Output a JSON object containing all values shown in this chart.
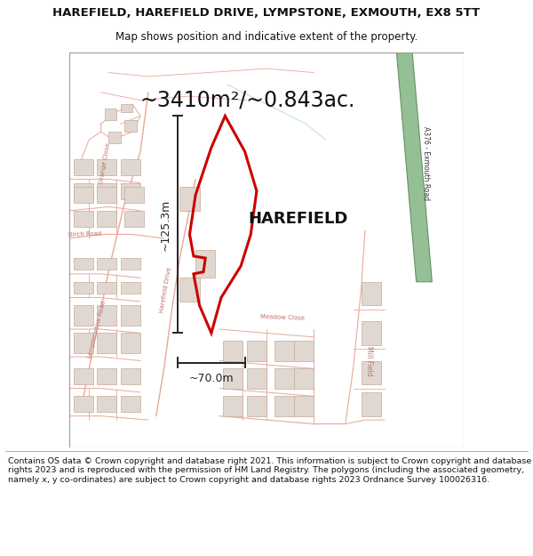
{
  "title": "HAREFIELD, HAREFIELD DRIVE, LYMPSTONE, EXMOUTH, EX8 5TT",
  "subtitle": "Map shows position and indicative extent of the property.",
  "footer": "Contains OS data © Crown copyright and database right 2021. This information is subject to Crown copyright and database rights 2023 and is reproduced with the permission of HM Land Registry. The polygons (including the associated geometry, namely x, y co-ordinates) are subject to Crown copyright and database rights 2023 Ordnance Survey 100026316.",
  "area_label": "~3410m²/~0.843ac.",
  "property_label": "HAREFIELD",
  "dim_height": "~125.3m",
  "dim_width": "~70.0m",
  "road_label": "A376 - Exmouth Road",
  "bg_color": "#ffffff",
  "map_bg": "#f7f2ee",
  "road_color": "#e8a898",
  "building_fc": "#e0d8d0",
  "building_ec": "#c8a898",
  "property_color": "#cc0000",
  "property_lw": 2.2,
  "dim_color": "#222222",
  "green_color": "#8ab88a",
  "green_edge": "#5a8a5a",
  "text_color": "#111111",
  "road_label_color": "#c07070",
  "title_fontsize": 9.5,
  "subtitle_fontsize": 8.5,
  "footer_fontsize": 6.8,
  "area_fontsize": 17,
  "property_label_fontsize": 13,
  "dim_fontsize": 9,
  "road_label_fontsize": 5
}
